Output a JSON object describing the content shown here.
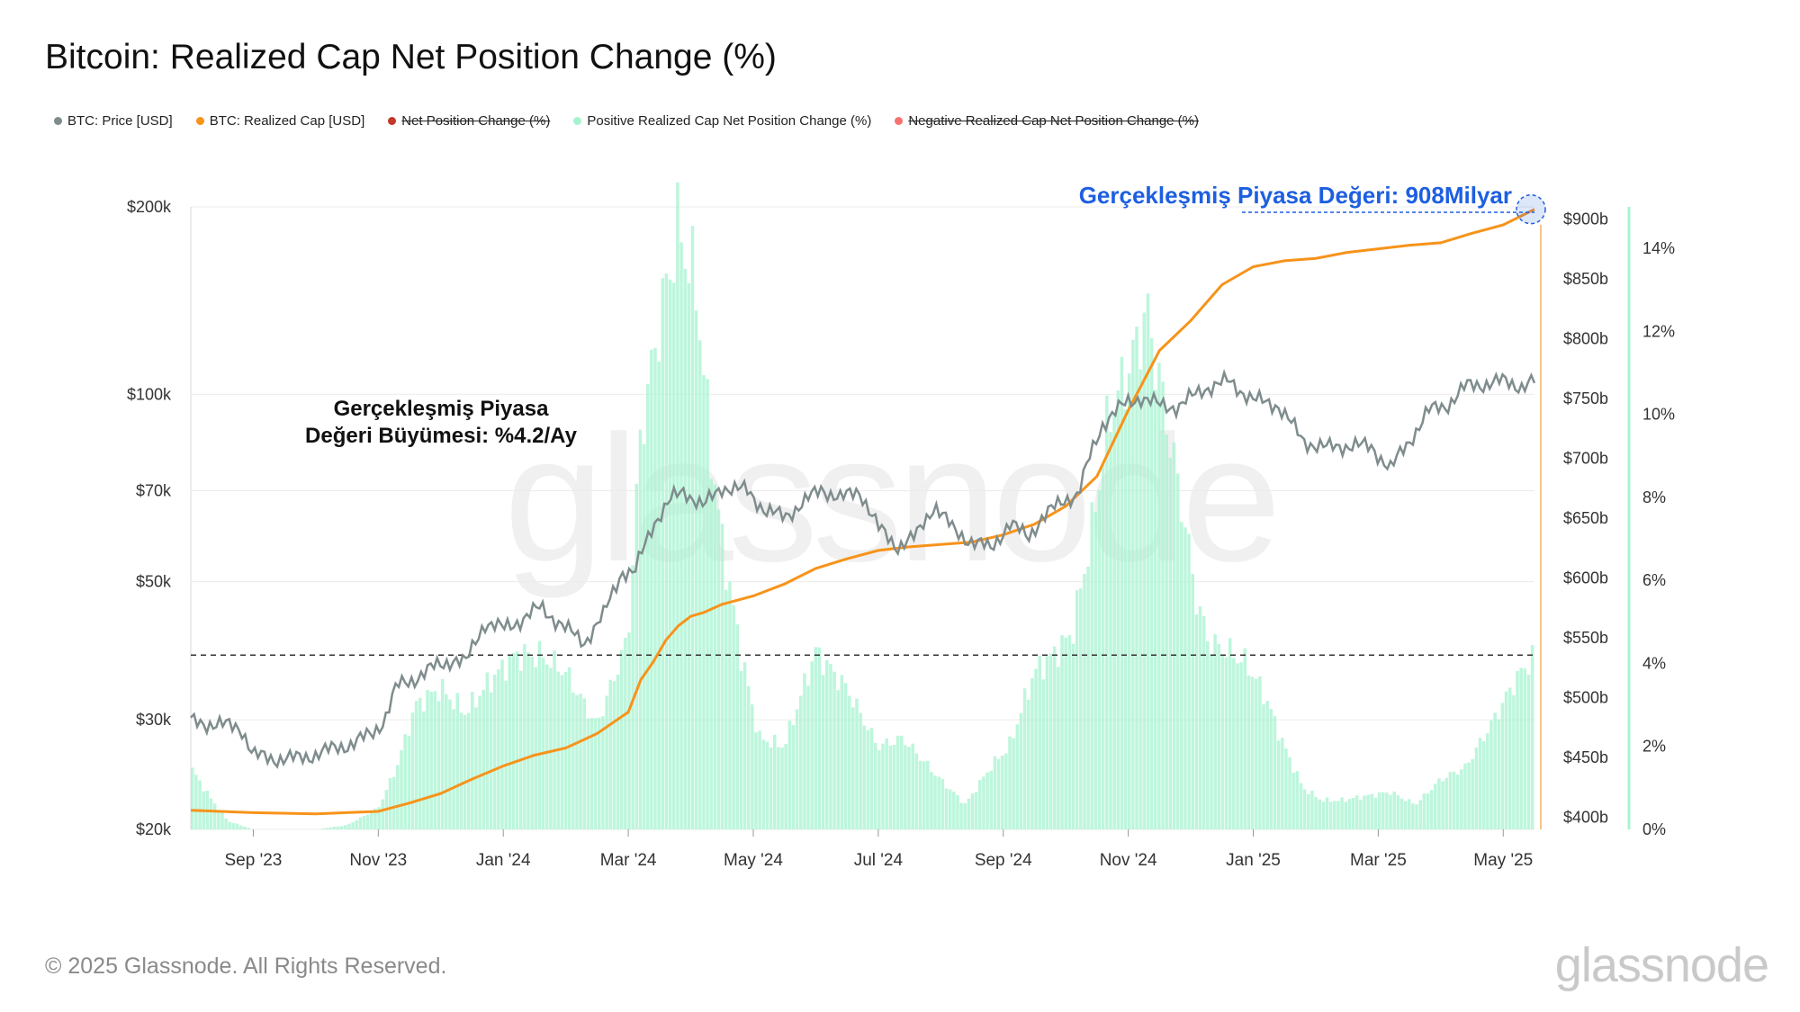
{
  "title": "Bitcoin: Realized Cap Net Position Change (%)",
  "legend": [
    {
      "label": "BTC: Price [USD]",
      "color": "#7f8c8d",
      "active": true
    },
    {
      "label": "BTC: Realized Cap [USD]",
      "color": "#f7931a",
      "active": true
    },
    {
      "label": "Net Position Change (%)",
      "color": "#c0392b",
      "active": false
    },
    {
      "label": "Positive Realized Cap Net Position Change (%)",
      "color": "#a7f3d0",
      "active": true
    },
    {
      "label": "Negative Realized Cap Net Position Change (%)",
      "color": "#f87171",
      "active": false
    }
  ],
  "annotations": {
    "growth_line1": "Gerçekleşmiş Piyasa",
    "growth_line2": "Değeri Büyümesi: %4.2/Ay",
    "realized_cap": "Gerçekleşmiş Piyasa Değeri: 908Milyar"
  },
  "watermark": "glassnode",
  "footer": "© 2025 Glassnode. All Rights Reserved.",
  "brand": "glassnode",
  "colors": {
    "price": "#7f8c8d",
    "realized_cap": "#f7931a",
    "positive": "#a7f3d0",
    "threshold": "#333333",
    "annotation": "#1e5fe0"
  },
  "chart_data": {
    "type": "line",
    "x_ticks": [
      "Sep '23",
      "Nov '23",
      "Jan '24",
      "Mar '24",
      "May '24",
      "Jul '24",
      "Sep '24",
      "Nov '24",
      "Jan '25",
      "Mar '25",
      "May '25"
    ],
    "x_range_months": [
      0,
      21.5
    ],
    "left_axis": {
      "label": "BTC: Price [USD]",
      "scale": "log",
      "ticks": [
        20000,
        30000,
        50000,
        70000,
        100000,
        200000
      ],
      "tick_labels": [
        "$20k",
        "$30k",
        "$50k",
        "$70k",
        "$100k",
        "$200k"
      ],
      "range": [
        20000,
        200000
      ]
    },
    "right_axis_1": {
      "label": "BTC: Realized Cap [USD]",
      "ticks": [
        400,
        450,
        500,
        550,
        600,
        650,
        700,
        750,
        800,
        850,
        900
      ],
      "tick_labels": [
        "$400b",
        "$450b",
        "$500b",
        "$550b",
        "$600b",
        "$650b",
        "$700b",
        "$750b",
        "$800b",
        "$850b",
        "$900b"
      ],
      "range": [
        390,
        910
      ]
    },
    "right_axis_2": {
      "label": "Net Position Change (%)",
      "ticks": [
        0,
        2,
        4,
        6,
        8,
        10,
        12,
        14
      ],
      "tick_labels": [
        "0%",
        "2%",
        "4%",
        "6%",
        "8%",
        "10%",
        "12%",
        "14%"
      ],
      "range": [
        0,
        15
      ]
    },
    "threshold_pct": 4.2,
    "series": [
      {
        "name": "BTC: Price [USD]",
        "axis": "left",
        "x": [
          0,
          0.4,
          0.8,
          1.0,
          1.3,
          1.7,
          2.0,
          2.3,
          2.6,
          2.9,
          3.1,
          3.3,
          3.6,
          3.9,
          4.2,
          4.4,
          4.7,
          5.0,
          5.3,
          5.6,
          6.0,
          6.3,
          6.6,
          6.9,
          7.1,
          7.4,
          7.7,
          7.9,
          8.2,
          8.5,
          8.9,
          9.2,
          9.5,
          9.8,
          10.1,
          10.4,
          10.7,
          11.0,
          11.3,
          11.6,
          11.9,
          12.2,
          12.5,
          12.8,
          13.1,
          13.4,
          13.6,
          13.8,
          14.0,
          14.2,
          14.4,
          14.6,
          14.8,
          15.0,
          15.2,
          15.5,
          15.8,
          16.2,
          16.6,
          17.0,
          17.4,
          17.8,
          18.2,
          18.6,
          18.9,
          19.2,
          19.5,
          19.8,
          20.1,
          20.4,
          20.7,
          21.0,
          21.3,
          21.5
        ],
        "values": [
          29800,
          29500,
          29200,
          26300,
          26000,
          26000,
          26400,
          27000,
          27500,
          28500,
          30000,
          34000,
          35000,
          36500,
          37500,
          37000,
          43000,
          42000,
          43500,
          45500,
          42000,
          40000,
          44000,
          52000,
          51500,
          62000,
          68000,
          70000,
          66000,
          71000,
          70000,
          65000,
          63500,
          67000,
          70500,
          68000,
          70000,
          61000,
          57000,
          59000,
          66500,
          60500,
          58000,
          56500,
          62000,
          59000,
          63000,
          65500,
          68000,
          69000,
          80000,
          90000,
          94000,
          97000,
          99000,
          96000,
          95500,
          102000,
          105000,
          98000,
          96000,
          84000,
          82000,
          83000,
          82000,
          76000,
          84000,
          94000,
          96000,
          103000,
          104000,
          105000,
          103000,
          105000
        ]
      },
      {
        "name": "BTC: Realized Cap [USD]",
        "axis": "right_1",
        "unit": "billion USD",
        "x": [
          0,
          1.0,
          2.0,
          3.0,
          3.5,
          4.0,
          4.5,
          5.0,
          5.5,
          6.0,
          6.5,
          7.0,
          7.2,
          7.4,
          7.6,
          7.8,
          8.0,
          8.2,
          8.5,
          9.0,
          9.5,
          10.0,
          10.5,
          11.0,
          11.5,
          12.0,
          12.5,
          13.0,
          13.5,
          14.0,
          14.5,
          15.0,
          15.5,
          16.0,
          16.5,
          17.0,
          17.5,
          18.0,
          18.5,
          19.0,
          19.5,
          20.0,
          20.5,
          21.0,
          21.5
        ],
        "values": [
          406,
          404,
          403,
          405,
          412,
          420,
          432,
          443,
          452,
          458,
          470,
          488,
          515,
          530,
          548,
          560,
          568,
          571,
          578,
          585,
          595,
          608,
          616,
          623,
          626,
          628,
          630,
          636,
          645,
          660,
          685,
          740,
          790,
          815,
          845,
          860,
          865,
          867,
          872,
          875,
          878,
          880,
          888,
          895,
          908
        ]
      },
      {
        "name": "Positive Realized Cap Net Position Change (%)",
        "axis": "right_2",
        "x": [
          0,
          0.3,
          0.6,
          1.0,
          1.5,
          2.0,
          2.5,
          3.0,
          3.3,
          3.6,
          4.0,
          4.4,
          4.8,
          5.2,
          5.6,
          6.0,
          6.5,
          7.0,
          7.2,
          7.5,
          7.8,
          8.1,
          8.3,
          8.5,
          8.8,
          9.1,
          9.5,
          10.0,
          10.5,
          11.0,
          11.4,
          12.0,
          12.4,
          12.8,
          13.1,
          13.5,
          13.8,
          14.1,
          14.4,
          14.7,
          15.0,
          15.3,
          15.6,
          15.9,
          16.1,
          16.3,
          16.6,
          16.9,
          17.2,
          17.5,
          17.8,
          18.1,
          18.4,
          18.8,
          19.2,
          19.6,
          20.0,
          20.4,
          20.8,
          21.2,
          21.5
        ],
        "values": [
          1.5,
          0.8,
          0.2,
          0,
          0,
          0,
          0.1,
          0.5,
          1.5,
          3.0,
          3.4,
          2.8,
          3.6,
          4.2,
          4.2,
          3.8,
          2.5,
          4.6,
          9.5,
          12.2,
          14.5,
          13.0,
          9.5,
          7.0,
          4.3,
          2.2,
          2.0,
          4.3,
          3.4,
          2.0,
          2.2,
          1.2,
          0.6,
          1.5,
          2.0,
          3.8,
          4.2,
          4.7,
          7.0,
          10.0,
          11.0,
          12.5,
          10.0,
          7.5,
          5.5,
          4.5,
          4.3,
          4.0,
          3.2,
          2.0,
          1.0,
          0.7,
          0.7,
          0.8,
          0.9,
          0.6,
          1.2,
          1.5,
          2.5,
          3.6,
          4.2
        ]
      }
    ]
  }
}
